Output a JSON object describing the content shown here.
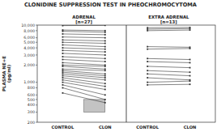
{
  "chart_data": {
    "type": "line",
    "title": "CLONIDINE SUPPRESSION TEST IN PHEOCHROMOCYTOMA",
    "y_label": "PLASMA NE+E\n(pg/ml)",
    "group_labels": [
      "ADRENAL\n[n=27]",
      "EXTRA ADRENAL\n[n=13]"
    ],
    "categories": [
      "CONTROL",
      "CLON",
      "CONTROL",
      "CLON"
    ],
    "log": "y",
    "grid": false,
    "color": "#333333",
    "marker": "square",
    "ylim": [
      200,
      10000
    ],
    "yticks": [
      200,
      300,
      400,
      500,
      600,
      800,
      {
        "value": 1000,
        "label": "1,000"
      },
      {
        "value": 2000,
        "label": "2,000"
      },
      {
        "value": 3000,
        "label": "3,000"
      },
      {
        "value": 4000,
        "label": "4,000"
      },
      {
        "value": 5000,
        "label": "5,000"
      },
      {
        "value": 6000,
        "label": "6,000"
      },
      {
        "value": 8000,
        "label": "8,000"
      },
      {
        "value": 10000,
        "label": "10,000"
      }
    ],
    "normal_range": [
      300,
      500
    ],
    "series": [
      {
        "values": [
          9800,
          9900,
          null,
          null
        ]
      },
      {
        "values": [
          8200,
          8000,
          null,
          null
        ]
      },
      {
        "values": [
          7800,
          7500,
          null,
          null
        ]
      },
      {
        "values": [
          7000,
          6800,
          null,
          null
        ]
      },
      {
        "values": [
          6200,
          6000,
          null,
          null
        ]
      },
      {
        "values": [
          5500,
          5300,
          null,
          null
        ]
      },
      {
        "values": [
          5000,
          4800,
          null,
          null
        ]
      },
      {
        "values": [
          4500,
          4200,
          null,
          null
        ]
      },
      {
        "values": [
          4000,
          3800,
          null,
          null
        ]
      },
      {
        "values": [
          3600,
          3400,
          null,
          null
        ]
      },
      {
        "values": [
          3200,
          3000,
          null,
          null
        ]
      },
      {
        "values": [
          2800,
          2600,
          null,
          null
        ]
      },
      {
        "values": [
          2500,
          2300,
          null,
          null
        ]
      },
      {
        "values": [
          2200,
          2000,
          null,
          null
        ]
      },
      {
        "values": [
          2000,
          1900,
          null,
          null
        ]
      },
      {
        "values": [
          1900,
          1700,
          null,
          null
        ]
      },
      {
        "values": [
          1700,
          1600,
          null,
          null
        ]
      },
      {
        "values": [
          1600,
          1400,
          null,
          null
        ]
      },
      {
        "values": [
          1500,
          1300,
          null,
          null
        ]
      },
      {
        "values": [
          1400,
          1200,
          null,
          null
        ]
      },
      {
        "values": [
          1300,
          1100,
          null,
          null
        ]
      },
      {
        "values": [
          1200,
          950,
          null,
          null
        ]
      },
      {
        "values": [
          1100,
          850,
          null,
          null
        ]
      },
      {
        "values": [
          1000,
          750,
          null,
          null
        ]
      },
      {
        "values": [
          900,
          600,
          null,
          null
        ]
      },
      {
        "values": [
          800,
          500,
          null,
          null
        ]
      },
      {
        "values": [
          650,
          440,
          null,
          null
        ]
      },
      {
        "values": [
          null,
          null,
          9000,
          9100
        ]
      },
      {
        "values": [
          null,
          null,
          8500,
          8700
        ]
      },
      {
        "values": [
          null,
          null,
          8000,
          8200
        ]
      },
      {
        "values": [
          null,
          null,
          4200,
          4100
        ]
      },
      {
        "values": [
          null,
          null,
          3800,
          3900
        ]
      },
      {
        "values": [
          null,
          null,
          2600,
          2500
        ]
      },
      {
        "values": [
          null,
          null,
          2300,
          2200
        ]
      },
      {
        "values": [
          null,
          null,
          1900,
          1800
        ]
      },
      {
        "values": [
          null,
          null,
          1600,
          1500
        ]
      },
      {
        "values": [
          null,
          null,
          1400,
          1300
        ]
      },
      {
        "values": [
          null,
          null,
          1200,
          1100
        ]
      },
      {
        "values": [
          null,
          null,
          1000,
          1050
        ]
      },
      {
        "values": [
          null,
          null,
          900,
          920
        ]
      }
    ]
  }
}
